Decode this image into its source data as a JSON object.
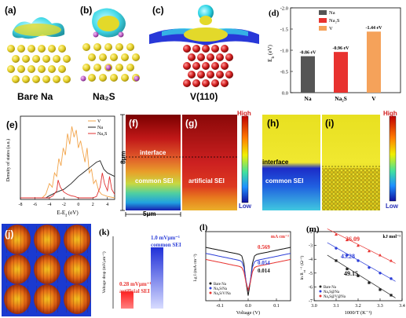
{
  "panels": {
    "a": {
      "letter": "(a)",
      "caption": "Bare Na"
    },
    "b": {
      "letter": "(b)",
      "caption": "Na₂S"
    },
    "c": {
      "letter": "(c)",
      "caption": "V(110)"
    },
    "e": {
      "letter": "(e)"
    },
    "f": {
      "letter": "(f)",
      "interface": "interface",
      "sei": "common SEI",
      "height_label": "8μm",
      "width_label": "5μm"
    },
    "g": {
      "letter": "(g)",
      "sei": "artificial SEI"
    },
    "fg_colorbar": {
      "high": "High",
      "low": "Low"
    },
    "h": {
      "letter": "(h)",
      "interface": "interface",
      "sei": "common SEI"
    },
    "i": {
      "letter": "(i)"
    },
    "hi_colorbar": {
      "high": "High",
      "low": "Low"
    },
    "j": {
      "letter": "(j)"
    }
  },
  "chart_data": [
    {
      "id": "d",
      "type": "bar",
      "letter": "(d)",
      "categories": [
        "Na",
        "Na₂S",
        "V"
      ],
      "values": [
        -0.86,
        -0.96,
        -1.44
      ],
      "value_labels": [
        "-0.86 eV",
        "-0.96 eV",
        "-1.44 eV"
      ],
      "colors": [
        "#555555",
        "#e8322f",
        "#f5a25a"
      ],
      "legend": [
        "Na",
        "Na₂S",
        "V"
      ],
      "ylabel": "E_b (eV)",
      "ylim": [
        0,
        -2.0
      ],
      "yticks": [
        "0.0",
        "-0.5",
        "-1.0",
        "-1.5",
        "-2.0"
      ]
    },
    {
      "id": "e",
      "type": "line",
      "xlabel": "E-E_f (eV)",
      "ylabel": "Density of states (a.u.)",
      "xlim": [
        -8,
        5
      ],
      "xticks": [
        "-8",
        "-6",
        "-4",
        "-2",
        "0",
        "2",
        "4"
      ],
      "legend": [
        "V",
        "Na",
        "Na₂S"
      ],
      "series": [
        {
          "name": "V",
          "color": "#f2a44a",
          "x": [
            -8,
            -5,
            -4.5,
            -4,
            -3.6,
            -3.3,
            -3,
            -2.7,
            -2.4,
            -2.1,
            -1.8,
            -1.5,
            -1.2,
            -0.9,
            -0.6,
            -0.3,
            0,
            0.3,
            0.6,
            0.9,
            1.2,
            1.5,
            1.8,
            2.1,
            2.4,
            2.8,
            3.2,
            4,
            5
          ],
          "y": [
            0,
            0,
            0.5,
            2,
            1.5,
            3.5,
            3,
            5.5,
            4.5,
            7,
            6,
            9,
            7.5,
            10,
            8.5,
            9.5,
            7,
            8,
            6.5,
            5,
            7,
            3.5,
            4,
            2,
            2.5,
            1,
            0.5,
            0.2,
            0
          ]
        },
        {
          "name": "Na",
          "color": "#222222",
          "x": [
            -8,
            -4.5,
            -4,
            -3,
            -2,
            -1,
            -0.5,
            0,
            0.5,
            1,
            1.5,
            2,
            2.5,
            3,
            3.5,
            4,
            5
          ],
          "y": [
            0,
            0,
            0.3,
            0.8,
            1.2,
            2,
            2.5,
            3,
            3.4,
            3.8,
            4.2,
            4.6,
            5,
            5.2,
            4,
            3.5,
            3
          ]
        },
        {
          "name": "Na₂S",
          "color": "#e03030",
          "x": [
            -8,
            -4,
            -3.5,
            -3,
            -2.8,
            -2.5,
            -2,
            -1.5,
            -1,
            -0.5,
            0,
            1,
            2,
            2.5,
            3,
            3.3,
            3.6,
            4,
            4.3,
            4.6,
            5
          ],
          "y": [
            0,
            0,
            0.3,
            1,
            2.5,
            1.5,
            0.8,
            0.5,
            0.3,
            0.2,
            0,
            0,
            0,
            0.2,
            1.5,
            3.5,
            2,
            1,
            3,
            1.2,
            0.5
          ]
        }
      ]
    },
    {
      "id": "k",
      "type": "bar",
      "letter": "(k)",
      "ylabel": "Voltage drop (mVμm⁻¹)",
      "categories": [
        "artificial SEI",
        "common SEI"
      ],
      "values": [
        0.28,
        1.0
      ],
      "value_labels": [
        "0.28 mVμm⁻¹",
        "1.0 mVμm⁻¹"
      ],
      "annotations": [
        "artificial SEI",
        "common SEI"
      ],
      "colors": [
        "#e8322f",
        "#2d3fd8"
      ]
    },
    {
      "id": "l",
      "type": "line",
      "letter": "(l)",
      "xlabel": "Voltage (V)",
      "ylabel": "Lg I (mA cm⁻²)",
      "unit_label": "mA cm⁻²",
      "xlim": [
        -0.15,
        0.15
      ],
      "xticks": [
        "-0.1",
        "0.0",
        "0.1"
      ],
      "legend": [
        "Bare Na",
        "Na₂S/Na",
        "Na₂S/V/Na"
      ],
      "value_labels": [
        "0.569",
        "0.054",
        "0.014"
      ],
      "value_label_colors": [
        "#e8322f",
        "#2d3fd8",
        "#111111"
      ],
      "series": [
        {
          "name": "Bare Na",
          "color": "#111111",
          "y0": 0.0,
          "dip": 3.6
        },
        {
          "name": "Na₂S/Na",
          "color": "#2d3fd8",
          "y0": 0.55,
          "dip": 2.6
        },
        {
          "name": "Na₂S/V/Na",
          "color": "#e8322f",
          "y0": 1.1,
          "dip": 2.0
        }
      ]
    },
    {
      "id": "m",
      "type": "scatter",
      "letter": "(m)",
      "xlabel": "1000/T (K⁻¹)",
      "ylabel": "ln R_ct⁻¹ (Ω⁻¹)",
      "unit_label": "kJ mol⁻¹",
      "xlim": [
        3.0,
        3.4
      ],
      "ylim": [
        -7,
        -2
      ],
      "xticks": [
        "3.0",
        "3.1",
        "3.2",
        "3.3",
        "3.4"
      ],
      "yticks": [
        "-2",
        "-3",
        "-4",
        "-5",
        "-6",
        "-7"
      ],
      "legend": [
        "Bare Na",
        "Na₂S@Na",
        "Na₂S@V@Na"
      ],
      "value_labels": [
        "36.09",
        "43.28",
        "49.15"
      ],
      "value_label_colors": [
        "#e8322f",
        "#2d3fd8",
        "#111111"
      ],
      "series": [
        {
          "name": "Bare Na",
          "color": "#222222",
          "marker": "square",
          "x": [
            3.1,
            3.15,
            3.2,
            3.25,
            3.3,
            3.35
          ],
          "y": [
            -4.1,
            -4.7,
            -5.2,
            -5.7,
            -6.2,
            -6.6
          ]
        },
        {
          "name": "Na₂S@Na",
          "color": "#2d3fd8",
          "marker": "circle",
          "x": [
            3.1,
            3.15,
            3.2,
            3.25,
            3.3,
            3.35
          ],
          "y": [
            -3.2,
            -3.7,
            -4.1,
            -4.6,
            -5.0,
            -5.4
          ]
        },
        {
          "name": "Na₂S@V@Na",
          "color": "#e8322f",
          "marker": "triangle",
          "x": [
            3.1,
            3.15,
            3.2,
            3.25,
            3.3,
            3.35
          ],
          "y": [
            -2.2,
            -2.6,
            -3.0,
            -3.4,
            -3.7,
            -4.1
          ]
        }
      ]
    }
  ]
}
